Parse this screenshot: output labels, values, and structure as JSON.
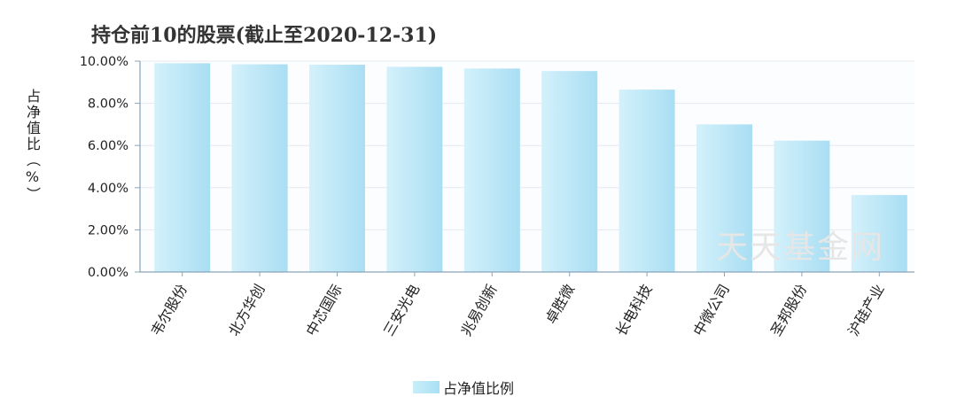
{
  "chart_data": {
    "type": "bar",
    "title": "持仓前10的股票(截止至2020-12-31)",
    "ylabel": "占净值比（%）",
    "xlabel": "",
    "categories": [
      "韦尔股份",
      "北方华创",
      "中芯国际",
      "三安光电",
      "兆易创新",
      "卓胜微",
      "长电科技",
      "中微公司",
      "圣邦股份",
      "沪硅产业"
    ],
    "series": [
      {
        "name": "占净值比例",
        "values": [
          9.9,
          9.85,
          9.83,
          9.73,
          9.65,
          9.53,
          8.65,
          7.0,
          6.23,
          3.65
        ]
      }
    ],
    "ylim": [
      0,
      10
    ],
    "yticks": [
      "0.00%",
      "2.00%",
      "4.00%",
      "6.00%",
      "8.00%",
      "10.00%"
    ],
    "grid": true,
    "legend_position": "bottom-center",
    "bar_color": "#b6e6f6"
  },
  "watermark": "天天基金网"
}
